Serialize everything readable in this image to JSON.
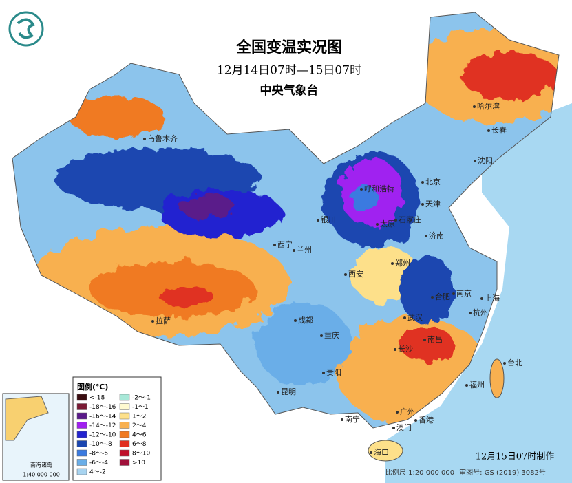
{
  "header": {
    "title": "全国变温实况图",
    "subtitle": "12月14日07时—15日07时",
    "agency": "中央气象台"
  },
  "legend": {
    "title": "图例(℃)",
    "items": [
      {
        "label": "<-18",
        "color": "#3a0c10"
      },
      {
        "label": "-18～-16",
        "color": "#7a1a34"
      },
      {
        "label": "-16～-14",
        "color": "#5a1a8a"
      },
      {
        "label": "-14～-12",
        "color": "#a020f0"
      },
      {
        "label": "-12～-10",
        "color": "#2424d0"
      },
      {
        "label": "-10～-8",
        "color": "#1a46b0"
      },
      {
        "label": "-8～-6",
        "color": "#3a7ae0"
      },
      {
        "label": "-6～-4",
        "color": "#6aaee8"
      },
      {
        "label": "4～-2",
        "color": "#a8d4f0"
      },
      {
        "label": "-2～-1",
        "color": "#a8e8d8"
      },
      {
        "label": "-1～1",
        "color": "#fffad0"
      },
      {
        "label": "1～2",
        "color": "#fde08a"
      },
      {
        "label": "2～4",
        "color": "#f8b050"
      },
      {
        "label": "4～6",
        "color": "#f07a20"
      },
      {
        "label": "6～8",
        "color": "#e03020"
      },
      {
        "label": "8～10",
        "color": "#c0102a"
      },
      {
        "label": ">10",
        "color": "#a0103a"
      }
    ]
  },
  "cities": [
    "乌鲁木齐",
    "哈尔滨",
    "长春",
    "沈阳",
    "北京",
    "天津",
    "呼和浩特",
    "石家庄",
    "太原",
    "银川",
    "济南",
    "西宁",
    "兰州",
    "郑州",
    "西安",
    "合肥",
    "南京",
    "上海",
    "武汉",
    "杭州",
    "成都",
    "重庆",
    "长沙",
    "南昌",
    "贵阳",
    "福州",
    "台北",
    "昆明",
    "拉萨",
    "南宁",
    "广州",
    "香港",
    "澳门",
    "海口"
  ],
  "inset": {
    "title": "南海诸岛",
    "scale": "1:40 000 000"
  },
  "footer": {
    "made": "12月15日07时制作",
    "scale": "比例尺 1:20 000 000",
    "approval": "审图号: GS (2019) 3082号"
  }
}
